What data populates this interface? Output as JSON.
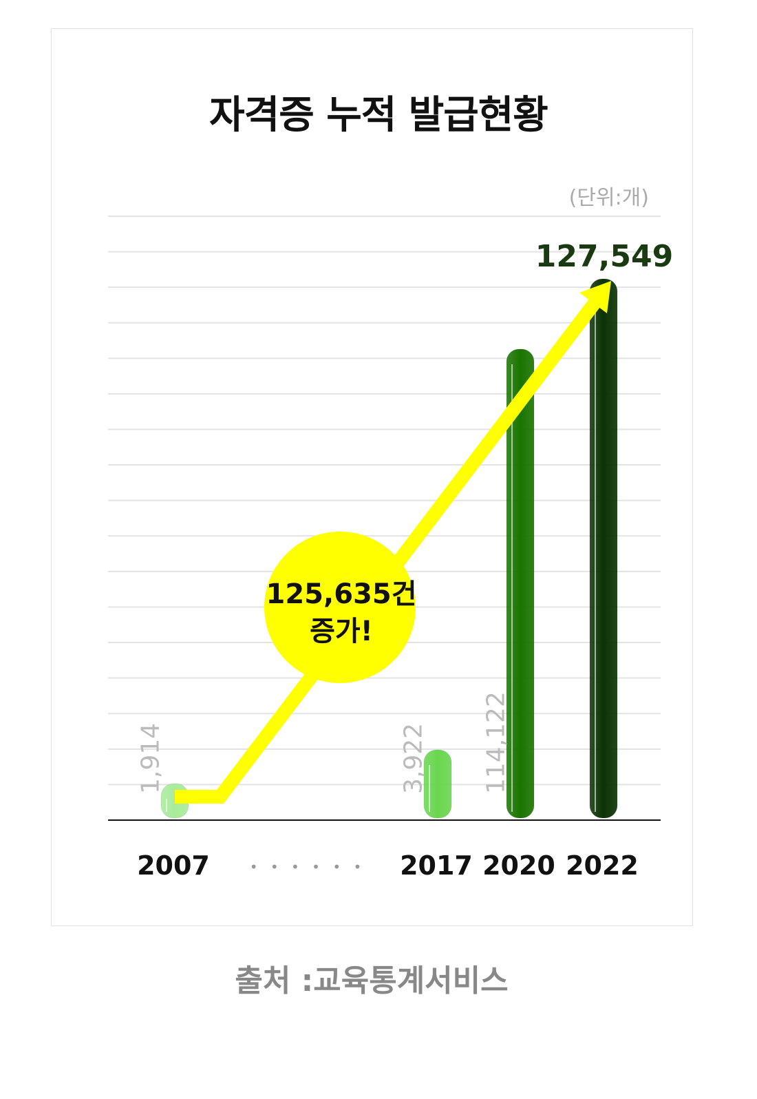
{
  "chart_data": {
    "type": "bar",
    "title": "자격증 누적 발급현황",
    "unit_label": "(단위:개)",
    "categories": [
      "2007",
      "2017",
      "2020",
      "2022"
    ],
    "gap_marker": "• • • • • •",
    "values": [
      1914,
      3922,
      114122,
      127549
    ],
    "value_labels": [
      "1,914",
      "3,922",
      "114,122",
      "127,549"
    ],
    "colors": [
      "#a8eb9a",
      "#6ad64f",
      "#1a7400",
      "#0b3204"
    ],
    "ylim": [
      0,
      127549
    ],
    "grid": true,
    "annotation": {
      "line1": "125,635건",
      "line2": "증가!",
      "color": "#ffff00"
    },
    "source": "출처 :교육통계서비스"
  }
}
